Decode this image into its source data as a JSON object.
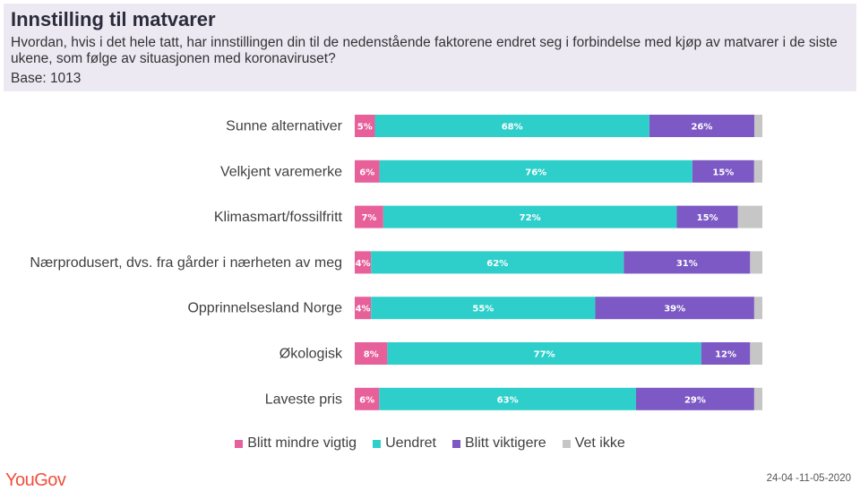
{
  "header": {
    "title": "Innstilling til matvarer",
    "subtitle": "Hvordan, hvis i det hele tatt, har innstillingen din til de nedenstående faktorene endret seg i forbindelse med kjøp av matvarer i de siste ukene, som følge av situasjonen med koronaviruset?",
    "base": "Base: 1013"
  },
  "chart_data": {
    "type": "bar",
    "orientation": "horizontal",
    "stacked": true,
    "title": "Innstilling til matvarer",
    "categories": [
      "Sunne alternativer",
      "Velkjent varemerke",
      "Klimasmart/fossilfritt",
      "Nærprodusert, dvs. fra gårder i nærheten av meg",
      "Opprinnelsesland Norge",
      "Økologisk",
      "Laveste pris"
    ],
    "series": [
      {
        "name": "Blitt mindre vigtig",
        "color": "#e8609a",
        "values": [
          5,
          6,
          7,
          4,
          4,
          8,
          6
        ]
      },
      {
        "name": "Uendret",
        "color": "#2ecfcb",
        "values": [
          68,
          76,
          72,
          62,
          55,
          77,
          63
        ]
      },
      {
        "name": "Blitt viktigere",
        "color": "#7c59c4",
        "values": [
          26,
          15,
          15,
          31,
          39,
          12,
          29
        ]
      },
      {
        "name": "Vet ikke",
        "color": "#c6c6c6",
        "values": [
          2,
          2,
          6,
          3,
          2,
          3,
          2
        ]
      }
    ],
    "value_labels_shown_for": [
      "Blitt mindre vigtig",
      "Uendret",
      "Blitt viktigere"
    ],
    "xlim": [
      0,
      100
    ],
    "legend": "bottom"
  },
  "footer": {
    "logo": "YouGov",
    "date": "24-04 -11-05-2020"
  }
}
